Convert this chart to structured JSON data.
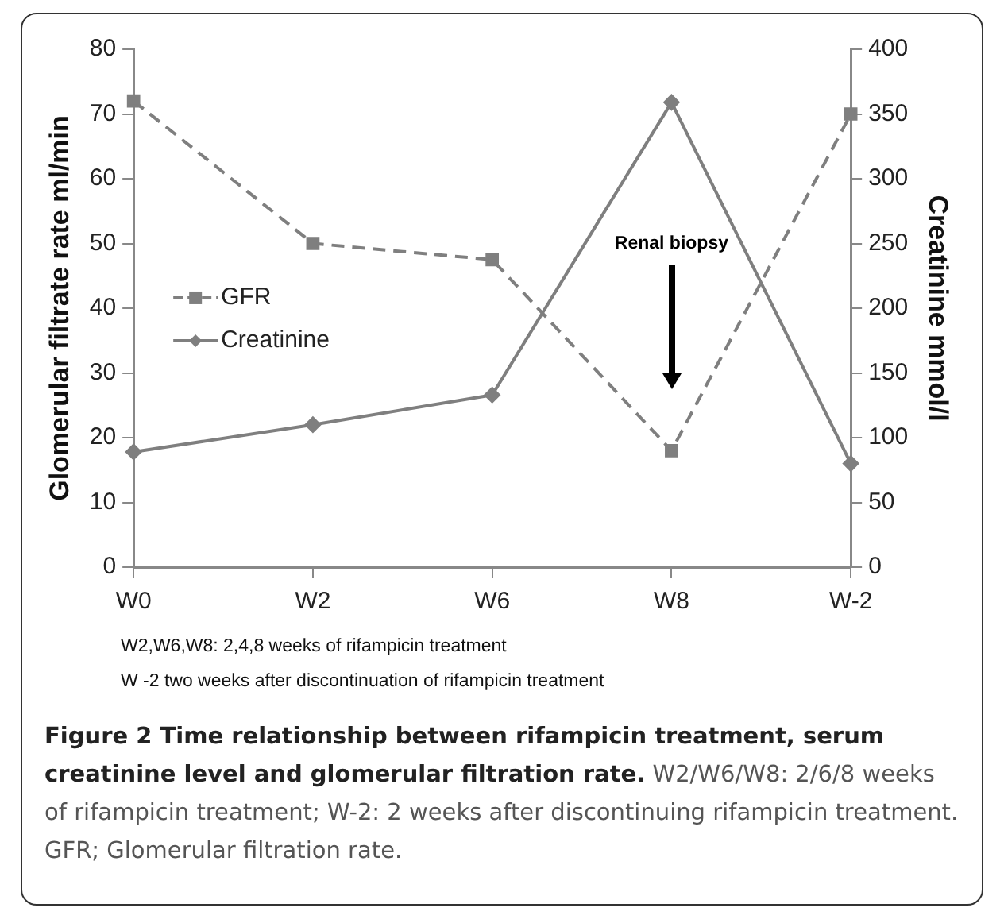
{
  "chart_data": {
    "type": "line",
    "title": "Figure 2 Time relationship between rifampicin treatment, serum creatinine level and glomerular filtration rate.",
    "ylabel": "Glomerular filtrate rate ml/min",
    "y2label": "Creatinine mmol/l",
    "categories": [
      "W0",
      "W2",
      "W6",
      "W8",
      "W-2"
    ],
    "series": [
      {
        "name": "GFR",
        "color": "#7f7f7f",
        "values": [
          72,
          50,
          47.5,
          18,
          70
        ],
        "marker": "square",
        "line_style": "dashed"
      },
      {
        "name": "Creatinine",
        "color": "#7f7f7f",
        "values": [
          89,
          110,
          133,
          359,
          80
        ],
        "axis": "y2",
        "marker": "diamond",
        "line_style": "solid"
      }
    ],
    "ylim": [
      0,
      80
    ],
    "yticks": [
      0,
      10,
      20,
      30,
      40,
      50,
      60,
      70,
      80
    ],
    "y2lim": [
      0,
      400
    ],
    "y2ticks": [
      0,
      50,
      100,
      150,
      200,
      250,
      300,
      350,
      400
    ],
    "grid": false,
    "legend": "left",
    "annotations": [
      "Renal biopsy",
      "W2,W6,W8: 2,4,8 weeks of rifampicin treatment",
      "W -2 two weeks after discontinuation of rifampicin treatment",
      "W2/W6/W8: 2/6/8 weeks of rifampicin treatment; W-2: 2 weeks after discontinuing rifampicin treatment. GFR; Glomerular filtration rate."
    ]
  }
}
